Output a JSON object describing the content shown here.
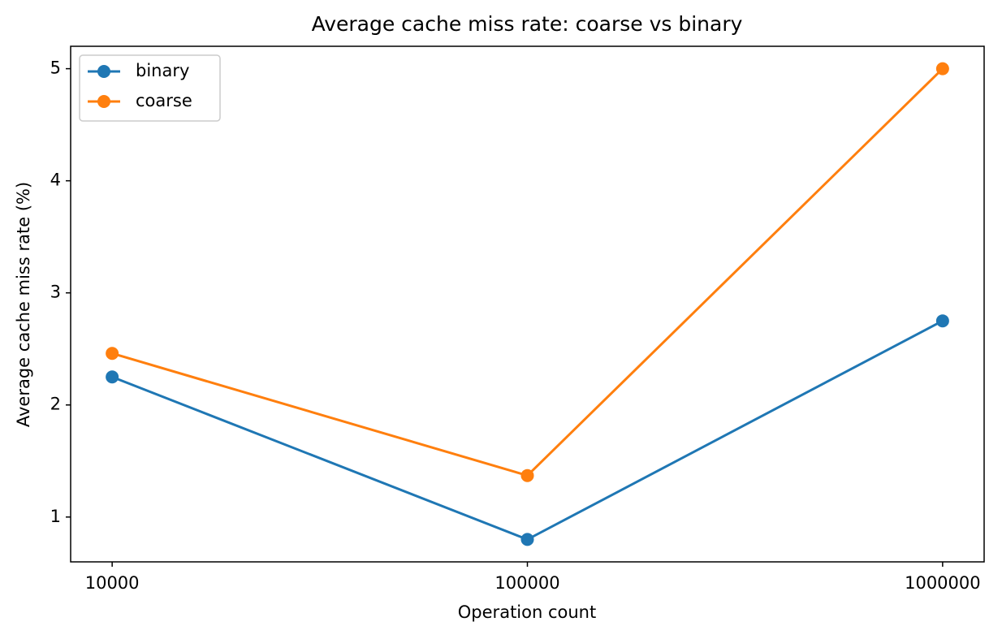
{
  "chart_data": {
    "type": "line",
    "title": "Average cache miss rate: coarse vs binary",
    "x_label": "Operation count",
    "y_label": "Average cache miss rate (%)",
    "categories": [
      "10000",
      "100000",
      "1000000"
    ],
    "series": [
      {
        "name": "binary",
        "color": "#1f77b4",
        "values": [
          2.25,
          0.8,
          2.75
        ]
      },
      {
        "name": "coarse",
        "color": "#ff7f0e",
        "values": [
          2.46,
          1.37,
          5.0
        ]
      }
    ],
    "ylim": [
      0.6,
      5.2
    ],
    "yticks": [
      1,
      2,
      3,
      4,
      5
    ],
    "grid": false,
    "legend": "upper-left"
  }
}
